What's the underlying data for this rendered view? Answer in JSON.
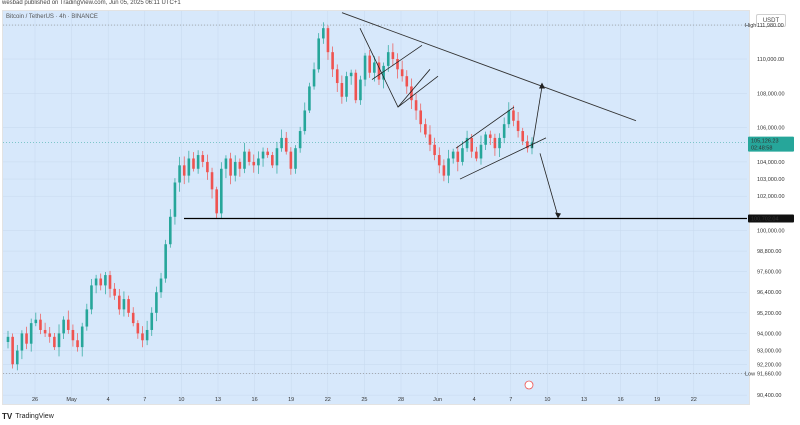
{
  "header": {
    "published": "wesbad published on TradingView.com, Jun 05, 2025 06:11 UTC+1"
  },
  "symbol": {
    "label": "Bitcoin / TetherUS · 4h · BINANCE"
  },
  "currency_button": "USDT",
  "footer": {
    "logo_text": "TradingView"
  },
  "chart_data": {
    "type": "line",
    "title": "",
    "xlabel": "",
    "ylabel": "",
    "x_ticks": [
      "26",
      "May",
      "4",
      "7",
      "10",
      "13",
      "16",
      "19",
      "22",
      "25",
      "28",
      "Jun",
      "4",
      "7",
      "10",
      "13",
      "16",
      "19",
      "22"
    ],
    "y_ticks": [
      "111,980.00",
      "110,000.00",
      "108,000.00",
      "106,000.00",
      "104,000.00",
      "103,000.00",
      "102,000.00",
      "100,000.00",
      "98,800.00",
      "97,600.00",
      "96,400.00",
      "95,200.00",
      "94,000.00",
      "93,000.00",
      "92,200.00",
      "91,660.00",
      "90,400.00"
    ],
    "ylim": [
      90000,
      112800
    ],
    "high_label": "High",
    "high_value": "111,980.00",
    "low_label": "Low",
    "low_value": "91,660.00",
    "current_price": "105,126.23",
    "countdown": "02:48:58",
    "support_level": "100,702.04",
    "series": [
      {
        "values": [
          93800,
          92200,
          93000,
          94000,
          93400,
          94600,
          94800,
          94200,
          94000,
          93800,
          93200,
          94000,
          94800,
          94200,
          93600,
          93200,
          94400,
          95400,
          96800,
          97200,
          96800,
          97400,
          96600,
          96200,
          95400,
          96000,
          95200,
          94600,
          94000,
          93600,
          94200,
          95200,
          96400,
          97200,
          99200,
          100800,
          102800,
          103800,
          103200,
          104200,
          103600,
          104400,
          104000,
          103400,
          102400,
          101000,
          103600,
          104200,
          103200,
          104000,
          103600,
          104600,
          104000,
          103800,
          104200,
          104600,
          104400,
          103800,
          104800,
          105400,
          104600,
          103600,
          104800,
          105800,
          107000,
          108400,
          109400,
          111200,
          111800,
          110400,
          109400,
          108600,
          107800,
          109000,
          109200,
          107600,
          108800,
          110200,
          109200,
          109800,
          108800,
          109600,
          110400,
          110000,
          109400,
          109000,
          108400,
          107600,
          107000,
          106200,
          105600,
          105000,
          104400,
          103800,
          103200,
          104200,
          104600,
          104000,
          104800,
          105400,
          104600,
          104200,
          105000,
          105600,
          105400,
          104800,
          105400,
          106200,
          107000,
          106400,
          105800,
          105200,
          104800,
          105126
        ]
      }
    ]
  }
}
